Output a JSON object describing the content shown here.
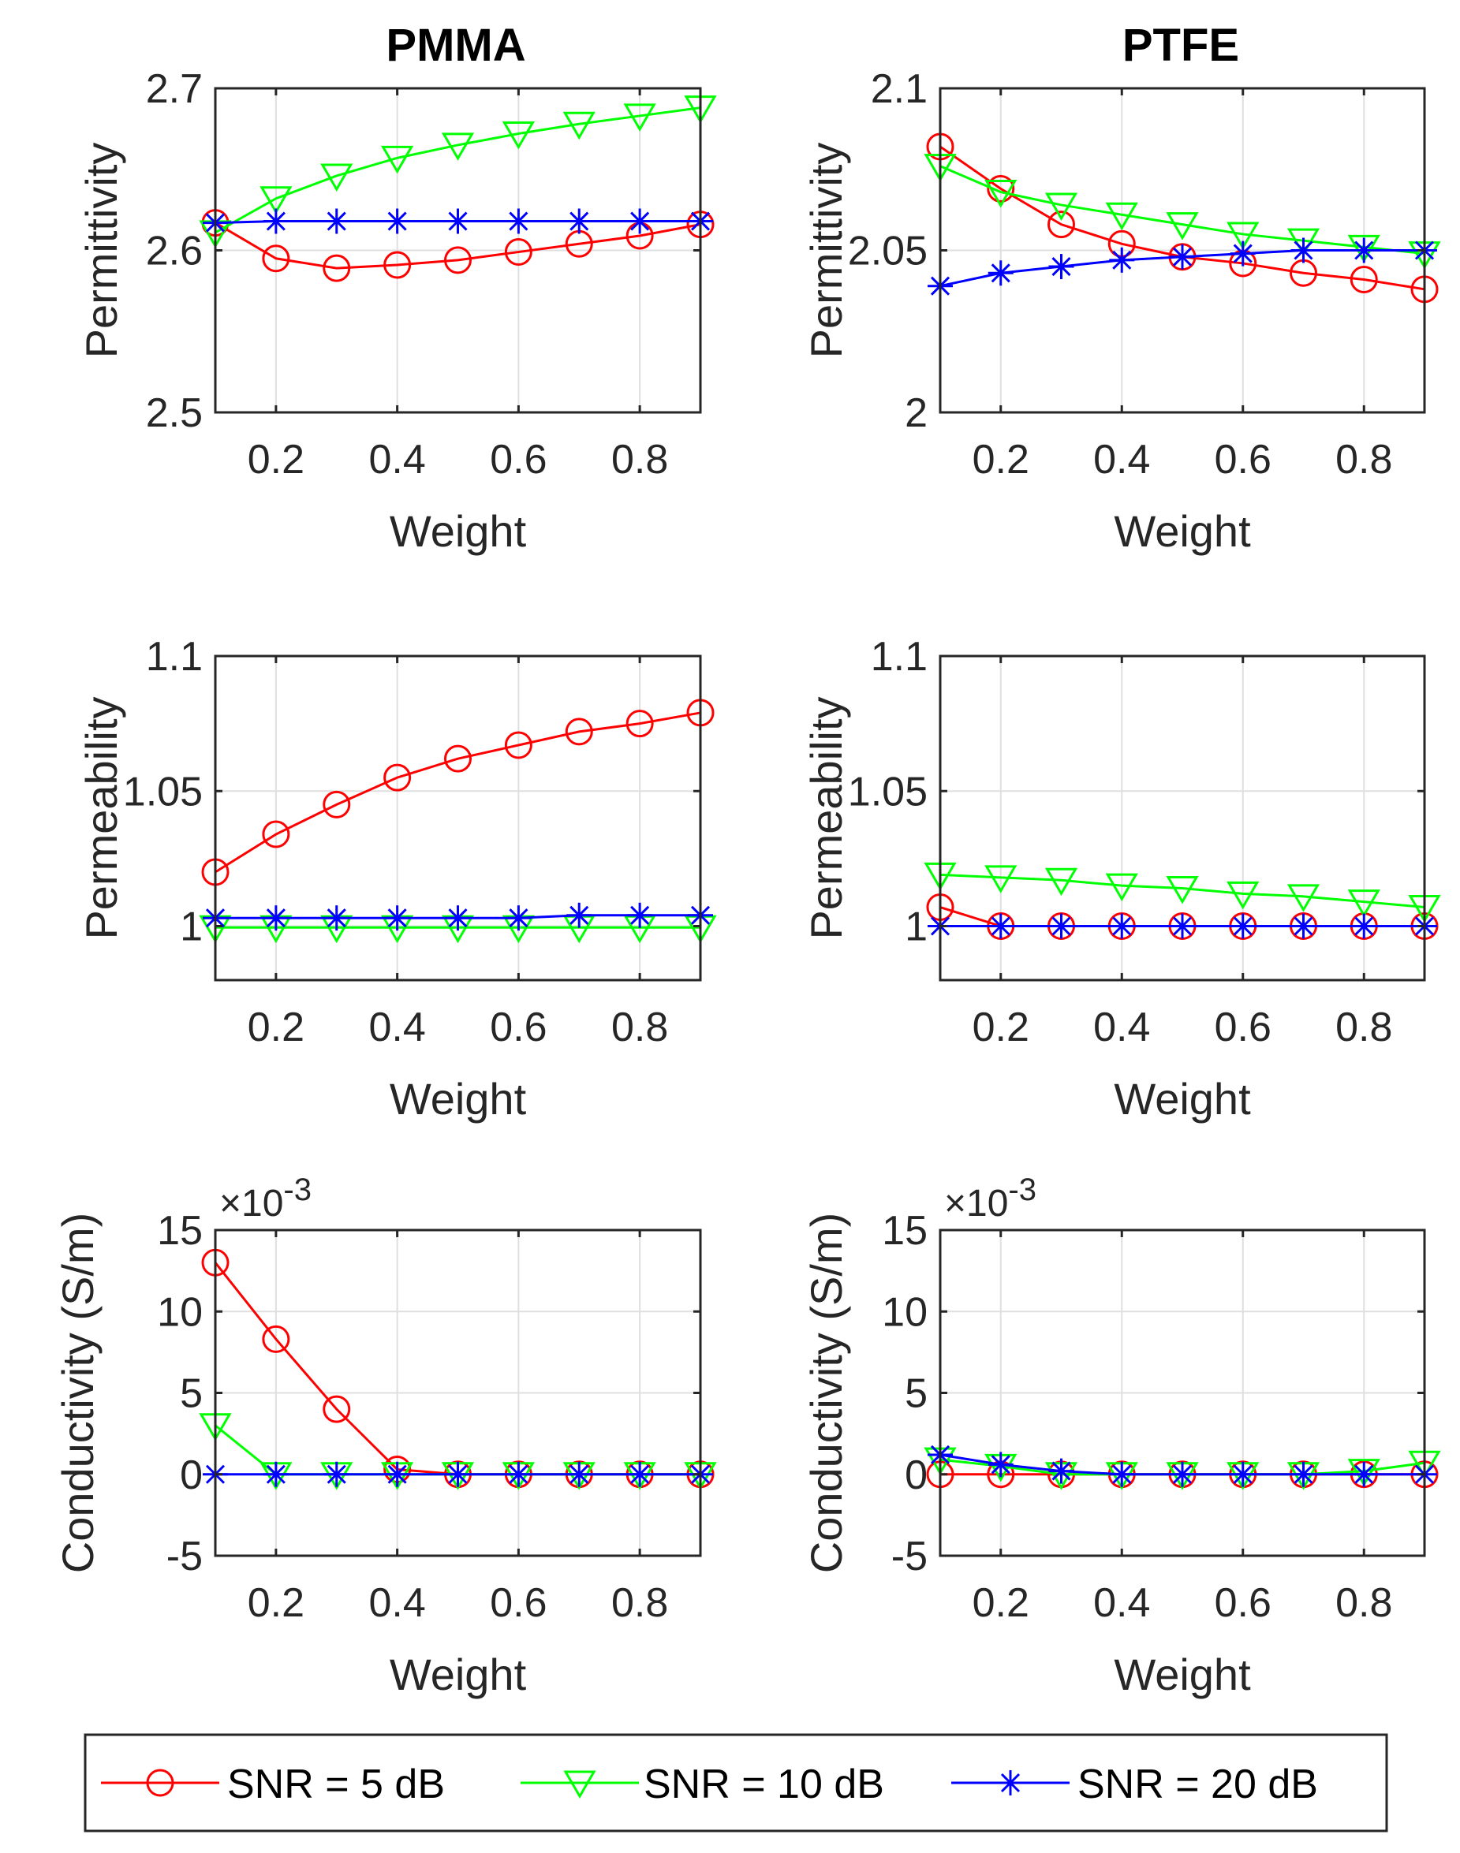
{
  "figure": {
    "columns": [
      "PMMA",
      "PTFE"
    ]
  },
  "legend": {
    "entries": [
      {
        "label": "SNR = 5 dB",
        "color": "#ff0000",
        "marker": "circle"
      },
      {
        "label": "SNR = 10 dB",
        "color": "#00ff00",
        "marker": "triangle-down"
      },
      {
        "label": "SNR = 20 dB",
        "color": "#0000ff",
        "marker": "asterisk"
      }
    ]
  },
  "chart_data": [
    {
      "type": "line",
      "id": "pmma-permittivity",
      "title": "PMMA",
      "xlabel": "Weight",
      "ylabel": "Permittivity",
      "xlim": [
        0.1,
        0.9
      ],
      "ylim": [
        2.5,
        2.7
      ],
      "xticks": [
        0.2,
        0.4,
        0.6,
        0.8
      ],
      "xtick_labels": [
        "0.2",
        "0.4",
        "0.6",
        "0.8"
      ],
      "yticks": [
        2.5,
        2.6,
        2.7
      ],
      "ytick_labels": [
        "2.5",
        "2.6",
        "2.7"
      ],
      "grid": true,
      "exponent_label": "",
      "x": [
        0.1,
        0.2,
        0.3,
        0.4,
        0.5,
        0.6,
        0.7,
        0.8,
        0.9
      ],
      "series": [
        {
          "name": "SNR = 5 dB",
          "values": [
            2.617,
            2.595,
            2.589,
            2.591,
            2.594,
            2.599,
            2.604,
            2.609,
            2.616
          ]
        },
        {
          "name": "SNR = 10 dB",
          "values": [
            2.611,
            2.632,
            2.646,
            2.657,
            2.665,
            2.672,
            2.678,
            2.683,
            2.688
          ]
        },
        {
          "name": "SNR = 20 dB",
          "values": [
            2.617,
            2.618,
            2.618,
            2.618,
            2.618,
            2.618,
            2.618,
            2.618,
            2.618
          ]
        }
      ]
    },
    {
      "type": "line",
      "id": "ptfe-permittivity",
      "title": "PTFE",
      "xlabel": "Weight",
      "ylabel": "Permittivity",
      "xlim": [
        0.1,
        0.9
      ],
      "ylim": [
        2.0,
        2.1
      ],
      "xticks": [
        0.2,
        0.4,
        0.6,
        0.8
      ],
      "xtick_labels": [
        "0.2",
        "0.4",
        "0.6",
        "0.8"
      ],
      "yticks": [
        2.0,
        2.05,
        2.1
      ],
      "ytick_labels": [
        "2",
        "2.05",
        "2.1"
      ],
      "grid": true,
      "exponent_label": "",
      "x": [
        0.1,
        0.2,
        0.3,
        0.4,
        0.5,
        0.6,
        0.7,
        0.8,
        0.9
      ],
      "series": [
        {
          "name": "SNR = 5 dB",
          "values": [
            2.082,
            2.069,
            2.058,
            2.052,
            2.048,
            2.046,
            2.043,
            2.041,
            2.038
          ]
        },
        {
          "name": "SNR = 10 dB",
          "values": [
            2.076,
            2.068,
            2.064,
            2.061,
            2.058,
            2.055,
            2.053,
            2.051,
            2.049
          ]
        },
        {
          "name": "SNR = 20 dB",
          "values": [
            2.039,
            2.043,
            2.045,
            2.047,
            2.048,
            2.049,
            2.05,
            2.05,
            2.05
          ]
        }
      ]
    },
    {
      "type": "line",
      "id": "pmma-permeability",
      "title": "",
      "xlabel": "Weight",
      "ylabel": "Permeability",
      "xlim": [
        0.1,
        0.9
      ],
      "ylim": [
        0.98,
        1.1
      ],
      "xticks": [
        0.2,
        0.4,
        0.6,
        0.8
      ],
      "xtick_labels": [
        "0.2",
        "0.4",
        "0.6",
        "0.8"
      ],
      "yticks": [
        1.0,
        1.05,
        1.1
      ],
      "ytick_labels": [
        "1",
        "1.05",
        "1.1"
      ],
      "grid": true,
      "exponent_label": "",
      "x": [
        0.1,
        0.2,
        0.3,
        0.4,
        0.5,
        0.6,
        0.7,
        0.8,
        0.9
      ],
      "series": [
        {
          "name": "SNR = 5 dB",
          "values": [
            1.02,
            1.034,
            1.045,
            1.055,
            1.062,
            1.067,
            1.072,
            1.075,
            1.079
          ]
        },
        {
          "name": "SNR = 10 dB",
          "values": [
            0.9995,
            0.9995,
            0.9995,
            0.9995,
            0.9995,
            0.9995,
            0.9995,
            0.9995,
            0.9995
          ]
        },
        {
          "name": "SNR = 20 dB",
          "values": [
            1.003,
            1.003,
            1.003,
            1.003,
            1.003,
            1.003,
            1.004,
            1.004,
            1.004
          ]
        }
      ]
    },
    {
      "type": "line",
      "id": "ptfe-permeability",
      "title": "",
      "xlabel": "Weight",
      "ylabel": "Permeability",
      "xlim": [
        0.1,
        0.9
      ],
      "ylim": [
        0.98,
        1.1
      ],
      "xticks": [
        0.2,
        0.4,
        0.6,
        0.8
      ],
      "xtick_labels": [
        "0.2",
        "0.4",
        "0.6",
        "0.8"
      ],
      "yticks": [
        1.0,
        1.05,
        1.1
      ],
      "ytick_labels": [
        "1",
        "1.05",
        "1.1"
      ],
      "grid": true,
      "exponent_label": "",
      "x": [
        0.1,
        0.2,
        0.3,
        0.4,
        0.5,
        0.6,
        0.7,
        0.8,
        0.9
      ],
      "series": [
        {
          "name": "SNR = 5 dB",
          "values": [
            1.007,
            1.0,
            1.0,
            1.0,
            1.0,
            1.0,
            1.0,
            1.0,
            1.0
          ]
        },
        {
          "name": "SNR = 10 dB",
          "values": [
            1.019,
            1.018,
            1.017,
            1.015,
            1.014,
            1.012,
            1.011,
            1.009,
            1.007
          ]
        },
        {
          "name": "SNR = 20 dB",
          "values": [
            1.0,
            1.0,
            1.0,
            1.0,
            1.0,
            1.0,
            1.0,
            1.0,
            1.0
          ]
        }
      ]
    },
    {
      "type": "line",
      "id": "pmma-conductivity",
      "title": "",
      "xlabel": "Weight",
      "ylabel": "Conductivity (S/m)",
      "xlim": [
        0.1,
        0.9
      ],
      "ylim": [
        -5,
        15
      ],
      "xticks": [
        0.2,
        0.4,
        0.6,
        0.8
      ],
      "xtick_labels": [
        "0.2",
        "0.4",
        "0.6",
        "0.8"
      ],
      "yticks": [
        -5,
        0,
        5,
        10,
        15
      ],
      "ytick_labels": [
        "-5",
        "0",
        "5",
        "10",
        "15"
      ],
      "grid": true,
      "exponent_label": "×10-3",
      "exponent_base": "×10",
      "exponent_power": "-3",
      "x": [
        0.1,
        0.2,
        0.3,
        0.4,
        0.5,
        0.6,
        0.7,
        0.8,
        0.9
      ],
      "series": [
        {
          "name": "SNR = 5 dB",
          "values": [
            13.0,
            8.3,
            4.0,
            0.3,
            0.0,
            0.0,
            0.0,
            0.0,
            0.0
          ]
        },
        {
          "name": "SNR = 10 dB",
          "values": [
            3.0,
            0.0,
            0.0,
            0.0,
            0.0,
            0.0,
            0.0,
            0.0,
            0.0
          ]
        },
        {
          "name": "SNR = 20 dB",
          "values": [
            0.0,
            0.0,
            0.0,
            0.0,
            0.0,
            0.0,
            0.0,
            0.0,
            0.0
          ]
        }
      ]
    },
    {
      "type": "line",
      "id": "ptfe-conductivity",
      "title": "",
      "xlabel": "Weight",
      "ylabel": "Conductivity (S/m)",
      "xlim": [
        0.1,
        0.9
      ],
      "ylim": [
        -5,
        15
      ],
      "xticks": [
        0.2,
        0.4,
        0.6,
        0.8
      ],
      "xtick_labels": [
        "0.2",
        "0.4",
        "0.6",
        "0.8"
      ],
      "yticks": [
        -5,
        0,
        5,
        10,
        15
      ],
      "ytick_labels": [
        "-5",
        "0",
        "5",
        "10",
        "15"
      ],
      "grid": true,
      "exponent_label": "×10-3",
      "exponent_base": "×10",
      "exponent_power": "-3",
      "x": [
        0.1,
        0.2,
        0.3,
        0.4,
        0.5,
        0.6,
        0.7,
        0.8,
        0.9
      ],
      "series": [
        {
          "name": "SNR = 5 dB",
          "values": [
            0.0,
            0.0,
            0.0,
            0.0,
            0.0,
            0.0,
            0.0,
            0.0,
            0.0
          ]
        },
        {
          "name": "SNR = 10 dB",
          "values": [
            0.9,
            0.5,
            0.0,
            0.0,
            0.0,
            0.0,
            0.0,
            0.2,
            0.7
          ]
        },
        {
          "name": "SNR = 20 dB",
          "values": [
            1.2,
            0.6,
            0.2,
            0.0,
            0.0,
            0.0,
            0.0,
            0.0,
            0.0
          ]
        }
      ]
    }
  ]
}
